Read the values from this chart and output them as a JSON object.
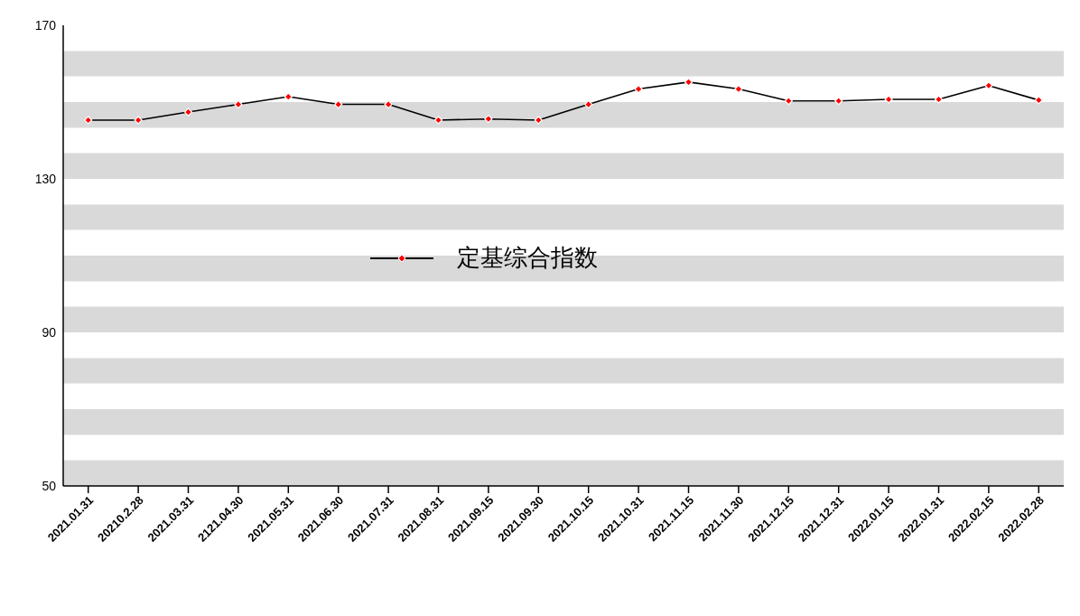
{
  "chart_data": {
    "type": "line",
    "categories": [
      "2021.01.31",
      "20210.2.28",
      "2021.03.31",
      "2121.04.30",
      "2021.05.31",
      "2021.06.30",
      "2021.07.31",
      "2021.08.31",
      "2021.09.15",
      "2021.09.30",
      "2021.10.15",
      "2021.10.31",
      "2021.11.15",
      "2021.11.30",
      "2021.12.15",
      "2021.12.31",
      "2022.01.15",
      "2022.01.31",
      "2022.02.15",
      "2022.02.28"
    ],
    "series": [
      {
        "name": "定基综合指数",
        "color": "#000000",
        "values": [
          145.3,
          145.3,
          147.4,
          149.4,
          151.4,
          149.4,
          149.4,
          145.3,
          145.6,
          145.3,
          149.4,
          153.4,
          155.2,
          153.4,
          150.3,
          150.3,
          150.7,
          150.7,
          154.3,
          150.5
        ]
      }
    ],
    "bands": [
      {
        "axis": "y",
        "from": 50,
        "to": 56.7,
        "color": "#d9d9d9"
      },
      {
        "axis": "y",
        "from": 63.3,
        "to": 70,
        "color": "#d9d9d9"
      },
      {
        "axis": "y",
        "from": 76.7,
        "to": 83.3,
        "color": "#d9d9d9"
      },
      {
        "axis": "y",
        "from": 90,
        "to": 96.7,
        "color": "#d9d9d9"
      },
      {
        "axis": "y",
        "from": 103.3,
        "to": 110,
        "color": "#d9d9d9"
      },
      {
        "axis": "y",
        "from": 116.7,
        "to": 123.3,
        "color": "#d9d9d9"
      },
      {
        "axis": "y",
        "from": 130,
        "to": 136.7,
        "color": "#d9d9d9"
      },
      {
        "axis": "y",
        "from": 143.3,
        "to": 150,
        "color": "#d9d9d9"
      },
      {
        "axis": "y",
        "from": 156.7,
        "to": 163.3,
        "color": "#d9d9d9"
      }
    ],
    "ylim": [
      50,
      170
    ],
    "yticks": [
      50,
      90,
      130,
      170
    ],
    "legend": "center",
    "marker": "diamond",
    "line_style": "solid"
  }
}
